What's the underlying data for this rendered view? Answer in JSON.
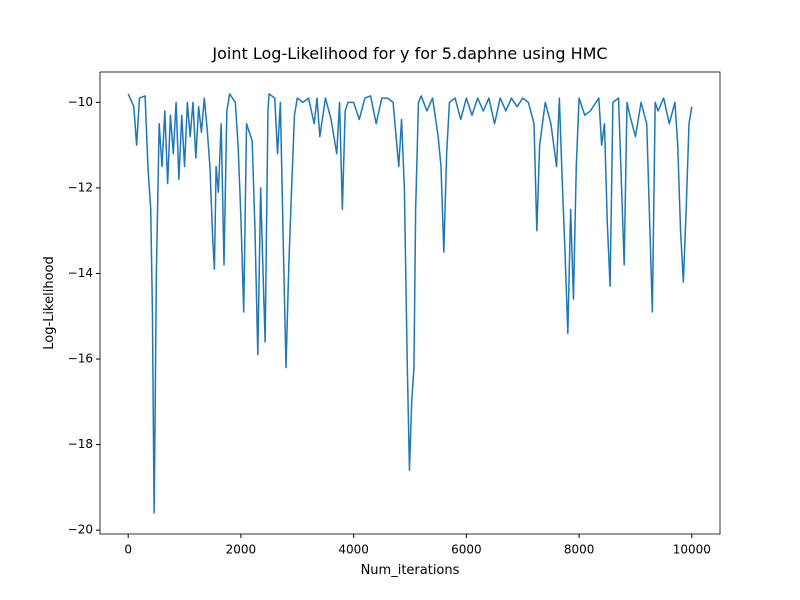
{
  "chart_data": {
    "type": "line",
    "title": "Joint Log-Likelihood for y for 5.daphne using HMC",
    "xlabel": "Num_iterations",
    "ylabel": "Log-Likelihood",
    "color": "#1f77b4",
    "xlim": [
      -500,
      10500
    ],
    "ylim": [
      -20.09,
      -9.29
    ],
    "xticks": [
      0,
      2000,
      4000,
      6000,
      8000,
      10000
    ],
    "yticks": [
      {
        "value": -20,
        "label": "−20"
      },
      {
        "value": -18,
        "label": "−18"
      },
      {
        "value": -16,
        "label": "−16"
      },
      {
        "value": -14,
        "label": "−14"
      },
      {
        "value": -12,
        "label": "−12"
      },
      {
        "value": -10,
        "label": "−10"
      }
    ],
    "x": [
      0,
      100,
      150,
      200,
      300,
      350,
      400,
      430,
      460,
      480,
      500,
      550,
      600,
      650,
      700,
      750,
      800,
      850,
      900,
      950,
      1000,
      1050,
      1100,
      1150,
      1200,
      1250,
      1300,
      1350,
      1400,
      1450,
      1500,
      1530,
      1560,
      1600,
      1650,
      1700,
      1750,
      1800,
      1900,
      1950,
      2000,
      2050,
      2100,
      2200,
      2250,
      2300,
      2350,
      2400,
      2430,
      2480,
      2500,
      2600,
      2650,
      2700,
      2750,
      2800,
      2850,
      2900,
      2950,
      3000,
      3100,
      3200,
      3300,
      3350,
      3400,
      3500,
      3600,
      3700,
      3750,
      3800,
      3850,
      3900,
      4000,
      4100,
      4200,
      4300,
      4400,
      4500,
      4600,
      4700,
      4800,
      4850,
      4900,
      4950,
      4990,
      5030,
      5070,
      5100,
      5150,
      5200,
      5300,
      5400,
      5500,
      5550,
      5600,
      5650,
      5700,
      5800,
      5900,
      6000,
      6100,
      6200,
      6300,
      6400,
      6500,
      6600,
      6700,
      6800,
      6900,
      7000,
      7100,
      7200,
      7250,
      7300,
      7400,
      7500,
      7600,
      7650,
      7700,
      7750,
      7800,
      7850,
      7900,
      7950,
      8000,
      8100,
      8200,
      8300,
      8350,
      8400,
      8450,
      8500,
      8550,
      8600,
      8700,
      8800,
      8850,
      8900,
      9000,
      9100,
      9200,
      9300,
      9350,
      9400,
      9500,
      9600,
      9700,
      9750,
      9800,
      9850,
      9900,
      9950,
      10000
    ],
    "values": [
      -9.8,
      -10.1,
      -11.0,
      -9.9,
      -9.85,
      -11.5,
      -12.5,
      -14.9,
      -19.6,
      -17,
      -14,
      -10.5,
      -11.5,
      -10.2,
      -11.9,
      -10.3,
      -11.2,
      -10.0,
      -11.8,
      -10.3,
      -11.5,
      -10.0,
      -10.8,
      -10.0,
      -11.3,
      -10.1,
      -10.7,
      -9.9,
      -10.6,
      -11.5,
      -13.2,
      -13.9,
      -11.5,
      -12.1,
      -10.5,
      -13.8,
      -10.2,
      -9.8,
      -10.0,
      -11.0,
      -12.7,
      -14.9,
      -10.5,
      -10.9,
      -13.0,
      -15.9,
      -12.0,
      -14.3,
      -15.6,
      -10.2,
      -9.8,
      -9.9,
      -11.2,
      -10.0,
      -13.2,
      -16.2,
      -13.8,
      -12.0,
      -10.3,
      -9.9,
      -10.0,
      -9.9,
      -10.5,
      -9.9,
      -10.8,
      -9.9,
      -10.4,
      -11.2,
      -10.0,
      -12.5,
      -10.2,
      -10.0,
      -10.0,
      -10.4,
      -9.9,
      -9.85,
      -10.5,
      -9.9,
      -9.9,
      -10.0,
      -11.5,
      -10.4,
      -12.0,
      -16.0,
      -18.6,
      -17.0,
      -16.2,
      -12.5,
      -10.0,
      -9.85,
      -10.2,
      -9.9,
      -10.8,
      -11.5,
      -13.5,
      -11.2,
      -10.0,
      -9.9,
      -10.4,
      -9.9,
      -10.3,
      -9.9,
      -10.2,
      -9.9,
      -10.5,
      -9.9,
      -10.2,
      -9.9,
      -10.1,
      -9.9,
      -10.0,
      -10.5,
      -13.0,
      -11.0,
      -10.0,
      -10.5,
      -11.5,
      -9.9,
      -11.8,
      -13.5,
      -15.4,
      -12.5,
      -14.6,
      -11.5,
      -9.9,
      -10.3,
      -10.2,
      -10.0,
      -9.9,
      -11.0,
      -10.5,
      -12.8,
      -14.3,
      -10.0,
      -9.9,
      -13.8,
      -10.0,
      -10.3,
      -10.8,
      -10.0,
      -10.5,
      -14.9,
      -10.0,
      -10.2,
      -9.9,
      -10.5,
      -10.0,
      -11.0,
      -13.0,
      -14.2,
      -12.5,
      -10.5,
      -10.1
    ]
  }
}
